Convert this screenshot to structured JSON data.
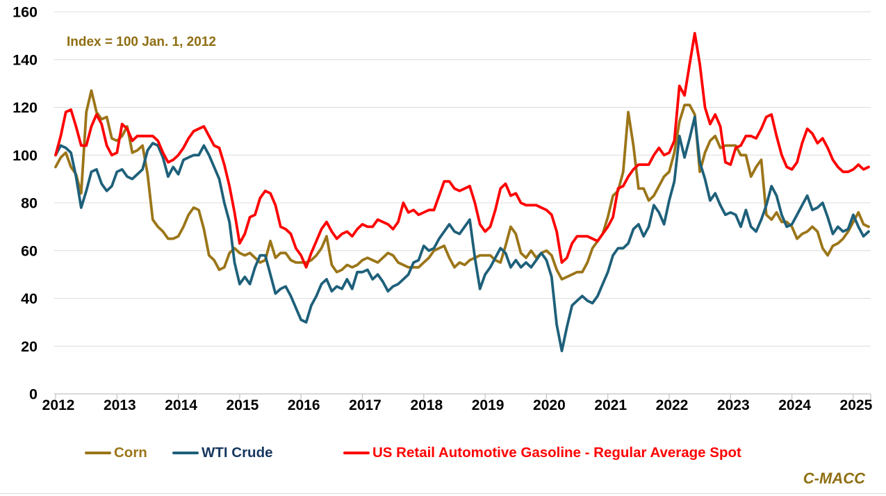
{
  "watermark": {
    "text": "C-MACC",
    "color": "#8F6E12"
  },
  "chart_data": {
    "type": "line",
    "title": "",
    "annotation": "Index = 100 Jan. 1, 2012",
    "annotation_color": "#8F6E12",
    "x_unit": "monthly",
    "x_start": "2012-01",
    "x_end": "2025-04",
    "points_per_year": 12,
    "x_tick_labels": [
      "2012",
      "2013",
      "2014",
      "2015",
      "2016",
      "2017",
      "2018",
      "2019",
      "2020",
      "2021",
      "2022",
      "2023",
      "2024",
      "2025"
    ],
    "y_ticks": [
      0,
      20,
      40,
      60,
      80,
      100,
      120,
      140,
      160
    ],
    "ylim": [
      0,
      160
    ],
    "xlim": [
      2012,
      2025.32
    ],
    "grid": true,
    "legend_position": "bottom",
    "grid_color": "#dcdcdc",
    "axis_color": "#c2c2c2",
    "series": [
      {
        "name": "Corn",
        "color": "#9B7518",
        "label_color": "#9B7518",
        "values": [
          95,
          99,
          101,
          95,
          92,
          84,
          118,
          127,
          118,
          115,
          116,
          107,
          106,
          108,
          112,
          101,
          102,
          104,
          92,
          73,
          70,
          68,
          65,
          65,
          66,
          70,
          75,
          78,
          77,
          69,
          58,
          56,
          52,
          53,
          59,
          61,
          59,
          58,
          59,
          57,
          55,
          56,
          64,
          57,
          59,
          59,
          56,
          55,
          55,
          55,
          56,
          58,
          61,
          66,
          54,
          51,
          52,
          54,
          53,
          54,
          56,
          57,
          56,
          55,
          57,
          59,
          58,
          55,
          54,
          53,
          53,
          53,
          55,
          57,
          60,
          61,
          62,
          57,
          53,
          55,
          54,
          56,
          57,
          58,
          58,
          58,
          56,
          55,
          62,
          70,
          67,
          59,
          57,
          60,
          57,
          59,
          60,
          58,
          52,
          48,
          49,
          50,
          51,
          51,
          55,
          61,
          64,
          67,
          74,
          83,
          85,
          93,
          118,
          104,
          86,
          86,
          81,
          83,
          87,
          91,
          93,
          101,
          114,
          121,
          121,
          117,
          93,
          101,
          106,
          108,
          103,
          104,
          104,
          104,
          100,
          100,
          91,
          95,
          98,
          75,
          73,
          76,
          72,
          72,
          70,
          65,
          67,
          68,
          70,
          68,
          61,
          58,
          62,
          63,
          65,
          68,
          72,
          76,
          71,
          70
        ]
      },
      {
        "name": "WTI Crude",
        "color": "#1E607A",
        "label_color": "#17375E",
        "values": [
          100,
          104,
          103,
          101,
          91,
          78,
          85,
          93,
          94,
          88,
          85,
          87,
          93,
          94,
          91,
          90,
          92,
          94,
          102,
          105,
          104,
          99,
          91,
          95,
          92,
          98,
          99,
          100,
          100,
          104,
          100,
          95,
          90,
          80,
          72,
          55,
          46,
          49,
          46,
          53,
          58,
          58,
          50,
          42,
          44,
          45,
          41,
          36,
          31,
          30,
          37,
          41,
          46,
          48,
          43,
          45,
          44,
          48,
          44,
          51,
          51,
          52,
          48,
          50,
          47,
          43,
          45,
          46,
          48,
          50,
          55,
          56,
          62,
          60,
          61,
          65,
          68,
          71,
          68,
          67,
          70,
          73,
          57,
          44,
          50,
          53,
          57,
          61,
          59,
          53,
          56,
          53,
          55,
          53,
          56,
          59,
          56,
          49,
          29,
          18,
          28,
          37,
          39,
          41,
          39,
          38,
          41,
          46,
          51,
          58,
          61,
          61,
          63,
          69,
          71,
          66,
          70,
          79,
          76,
          71,
          81,
          89,
          108,
          99,
          107,
          116,
          97,
          90,
          81,
          84,
          79,
          75,
          76,
          75,
          70,
          77,
          70,
          68,
          73,
          79,
          87,
          83,
          75,
          70,
          71,
          75,
          79,
          83,
          77,
          78,
          80,
          74,
          67,
          70,
          68,
          69,
          75,
          70,
          66,
          68
        ]
      },
      {
        "name": "US Retail Automotive Gasoline - Regular Average Spot",
        "color": "#FF0000",
        "label_color": "#FF0000",
        "values": [
          100,
          108,
          118,
          119,
          112,
          104,
          104,
          112,
          117,
          113,
          104,
          100,
          101,
          113,
          111,
          106,
          108,
          108,
          108,
          108,
          106,
          101,
          97,
          98,
          100,
          103,
          107,
          110,
          111,
          112,
          108,
          104,
          103,
          96,
          87,
          76,
          63,
          67,
          74,
          75,
          82,
          85,
          84,
          79,
          70,
          69,
          67,
          61,
          58,
          53,
          59,
          64,
          69,
          72,
          68,
          65,
          67,
          68,
          66,
          69,
          71,
          70,
          70,
          73,
          72,
          71,
          69,
          72,
          80,
          76,
          77,
          75,
          76,
          77,
          77,
          83,
          89,
          89,
          86,
          85,
          86,
          87,
          80,
          71,
          68,
          70,
          77,
          86,
          88,
          83,
          84,
          80,
          79,
          79,
          79,
          78,
          77,
          75,
          68,
          55,
          57,
          63,
          66,
          66,
          66,
          65,
          64,
          67,
          70,
          74,
          86,
          87,
          91,
          94,
          96,
          96,
          96,
          100,
          103,
          100,
          101,
          106,
          129,
          125,
          138,
          151,
          138,
          120,
          113,
          117,
          112,
          97,
          96,
          103,
          104,
          108,
          108,
          107,
          111,
          116,
          117,
          108,
          100,
          95,
          94,
          97,
          105,
          111,
          109,
          105,
          107,
          103,
          98,
          95,
          93,
          93,
          94,
          96,
          94,
          95
        ]
      }
    ]
  }
}
